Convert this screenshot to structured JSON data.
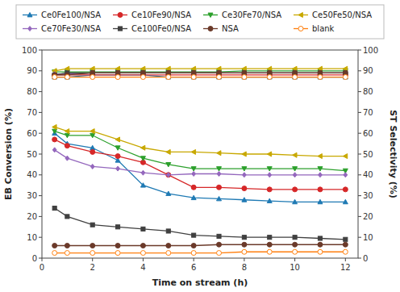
{
  "chart_data": {
    "type": "line",
    "xlabel": "Time on stream (h)",
    "ylabel": "EB Conversion (%)",
    "y2label": "ST Selectivity (%)",
    "x": [
      0.5,
      1,
      2,
      3,
      4,
      5,
      6,
      7,
      8,
      9,
      10,
      11,
      12
    ],
    "xlim": [
      0,
      12.5
    ],
    "xticks": [
      0,
      2,
      4,
      6,
      8,
      10,
      12
    ],
    "ylim": [
      0,
      100
    ],
    "yticks": [
      0,
      10,
      20,
      30,
      40,
      50,
      60,
      70,
      80,
      90,
      100
    ],
    "y2lim": [
      0,
      100
    ],
    "y2ticks": [
      0,
      10,
      20,
      30,
      40,
      50,
      60,
      70,
      80,
      90,
      100
    ],
    "grid": false,
    "legend": "top",
    "series": [
      {
        "name": "Ce0Fe100/NSA",
        "color": "#1f7ab4",
        "marker": "triangle-up",
        "axis": "y",
        "values": [
          60,
          55,
          53,
          47,
          35,
          31,
          29,
          28.5,
          28,
          27.5,
          27,
          27,
          27
        ]
      },
      {
        "name": "Ce10Fe90/NSA",
        "color": "#d62728",
        "marker": "circle",
        "axis": "y",
        "values": [
          57,
          54,
          51,
          49,
          46,
          40,
          34,
          34,
          33.5,
          33,
          33,
          33,
          33
        ]
      },
      {
        "name": "Ce30Fe70/NSA",
        "color": "#2ca02c",
        "marker": "triangle-down",
        "axis": "y",
        "values": [
          61,
          59,
          59,
          53,
          48,
          45,
          43,
          43,
          43,
          43,
          43,
          43,
          42
        ]
      },
      {
        "name": "Ce50Fe50/NSA",
        "color": "#c8a800",
        "marker": "triangle-left",
        "axis": "y",
        "values": [
          63,
          61,
          61,
          57,
          53,
          51,
          51,
          50.5,
          50,
          50,
          49.5,
          49,
          49
        ]
      },
      {
        "name": "Ce70Fe30/NSA",
        "color": "#9467bd",
        "marker": "diamond",
        "axis": "y",
        "values": [
          52,
          48,
          44,
          43,
          41,
          40,
          40.5,
          40.5,
          40,
          40,
          40,
          40,
          40
        ]
      },
      {
        "name": "Ce100Fe0/NSA",
        "color": "#404040",
        "marker": "square",
        "axis": "y",
        "values": [
          24,
          20,
          16,
          15,
          14,
          13,
          11,
          10.5,
          10,
          10,
          10,
          9.5,
          9
        ]
      },
      {
        "name": "NSA",
        "color": "#6b3a2a",
        "marker": "circle",
        "axis": "y",
        "values": [
          6,
          6,
          6,
          6,
          6,
          6,
          6,
          6.5,
          6.5,
          6.5,
          6.5,
          6.5,
          6.5
        ]
      },
      {
        "name": "blank",
        "color": "#ff7f0e",
        "marker": "circle-open",
        "axis": "y",
        "values": [
          2.5,
          2.5,
          2.5,
          2.5,
          2.5,
          2.5,
          2.5,
          2.5,
          3,
          3,
          3,
          3,
          3
        ]
      },
      {
        "name": "Ce0Fe100/NSA",
        "color": "#1f7ab4",
        "marker": "triangle-up",
        "axis": "y2",
        "values": [
          87,
          87,
          88,
          88,
          88,
          87,
          87,
          87,
          87,
          87,
          87,
          87,
          87
        ]
      },
      {
        "name": "Ce10Fe90/NSA",
        "color": "#d62728",
        "marker": "circle",
        "axis": "y2",
        "values": [
          88,
          88,
          88,
          88,
          88,
          88,
          88,
          88,
          88,
          88,
          88,
          88,
          88
        ]
      },
      {
        "name": "Ce30Fe70/NSA",
        "color": "#2ca02c",
        "marker": "triangle-down",
        "axis": "y2",
        "values": [
          89.5,
          89.5,
          89.5,
          89.5,
          89.5,
          89.5,
          89.5,
          89.5,
          90,
          90,
          90,
          90,
          90
        ]
      },
      {
        "name": "Ce50Fe50/NSA",
        "color": "#c8a800",
        "marker": "triangle-left",
        "axis": "y2",
        "values": [
          90,
          91,
          91,
          91,
          91,
          91,
          91,
          91,
          91,
          91,
          91,
          91,
          91
        ]
      },
      {
        "name": "Ce70Fe30/NSA",
        "color": "#9467bd",
        "marker": "diamond",
        "axis": "y2",
        "values": [
          88.5,
          88.5,
          89,
          89,
          89,
          89,
          89,
          89,
          89,
          89,
          89,
          89,
          89
        ]
      },
      {
        "name": "Ce100Fe0/NSA",
        "color": "#404040",
        "marker": "square",
        "axis": "y2",
        "values": [
          88,
          89,
          89,
          89,
          89,
          89,
          89,
          89,
          89,
          89,
          89,
          89,
          89
        ]
      },
      {
        "name": "NSA",
        "color": "#6b3a2a",
        "marker": "circle",
        "axis": "y2",
        "values": [
          88,
          88,
          89,
          89,
          89,
          89,
          89,
          89,
          89,
          89,
          89,
          89,
          89
        ]
      },
      {
        "name": "blank",
        "color": "#ff7f0e",
        "marker": "circle-open",
        "axis": "y2",
        "values": [
          87,
          87,
          87,
          87,
          87,
          87,
          87,
          87,
          87,
          87,
          87,
          87,
          87
        ]
      }
    ]
  }
}
